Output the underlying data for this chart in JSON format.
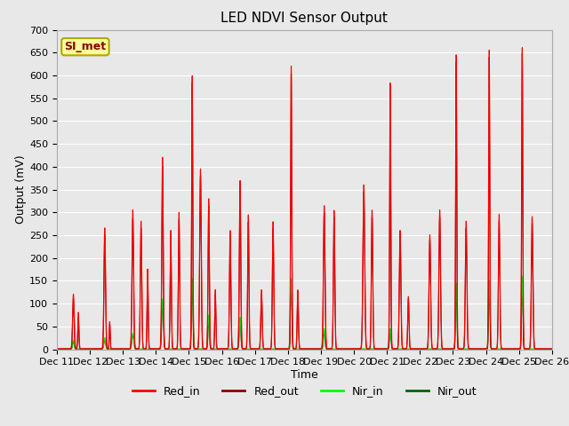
{
  "title": "LED NDVI Sensor Output",
  "xlabel": "Time",
  "ylabel": "Output (mV)",
  "ylim": [
    0,
    700
  ],
  "yticks": [
    0,
    50,
    100,
    150,
    200,
    250,
    300,
    350,
    400,
    450,
    500,
    550,
    600,
    650,
    700
  ],
  "x_labels": [
    "Dec 11",
    "Dec 12",
    "Dec 13",
    "Dec 14",
    "Dec 15",
    "Dec 16",
    "Dec 17",
    "Dec 18",
    "Dec 19",
    "Dec 20",
    "Dec 21",
    "Dec 22",
    "Dec 23",
    "Dec 24",
    "Dec 25",
    "Dec 26"
  ],
  "legend_labels": [
    "Red_in",
    "Red_out",
    "Nir_in",
    "Nir_out"
  ],
  "legend_colors": [
    "#ff0000",
    "#8b0000",
    "#00ff00",
    "#006400"
  ],
  "annotation_text": "SI_met",
  "annotation_color": "#ffff99",
  "annotation_border": "#aaaa00",
  "plot_bg": "#e8e8e8",
  "fig_bg": "#e8e8e8",
  "grid_color": "#ffffff",
  "title_fontsize": 11,
  "axis_fontsize": 9,
  "tick_fontsize": 8,
  "legend_fontsize": 9
}
